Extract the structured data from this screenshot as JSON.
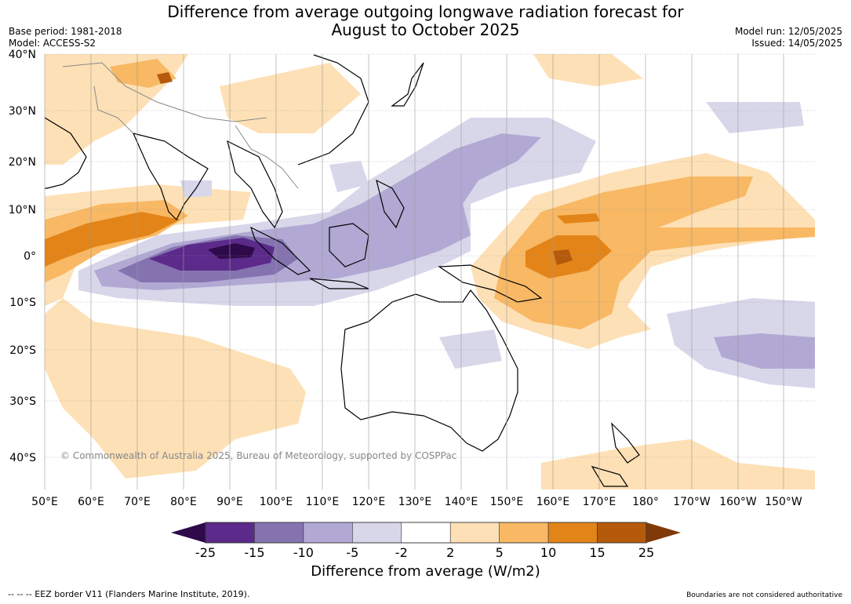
{
  "title_line1": "Difference from average outgoing longwave radiation forecast for",
  "title_line2": "August to October 2025",
  "meta_left": [
    "Base period: 1981-2018",
    "Model: ACCESS-S2"
  ],
  "meta_right": [
    "Model run: 12/05/2025",
    "Issued: 14/05/2025"
  ],
  "lat_labels": [
    "40°N",
    "30°N",
    "20°N",
    "10°N",
    "0°",
    "10°S",
    "20°S",
    "30°S",
    "40°S"
  ],
  "lon_labels": [
    "50°E",
    "60°E",
    "70°E",
    "80°E",
    "90°E",
    "100°E",
    "110°E",
    "120°E",
    "130°E",
    "140°E",
    "150°E",
    "160°E",
    "170°E",
    "180°",
    "170°W",
    "160°W",
    "150°W"
  ],
  "copyright": "© Commonwealth of Australia 2025, Bureau of Meteorology, supported by COSPPac",
  "colorbar": {
    "label": "Difference from average (W/m2)",
    "ticks": [
      "-25",
      "-15",
      "-10",
      "-5",
      "-2",
      "2",
      "5",
      "10",
      "15",
      "25"
    ],
    "colors": [
      "#2e0a4a",
      "#5b2a8a",
      "#8573b0",
      "#b1a9d3",
      "#d8d7ea",
      "#ffffff",
      "#fde0b5",
      "#f8b864",
      "#e38418",
      "#b55a0b",
      "#7f3a08"
    ]
  },
  "footer_left": "--  --  -- EEZ border V11 (Flanders Marine Institute, 2019).",
  "footer_right": "Boundaries are not considered authoritative"
}
